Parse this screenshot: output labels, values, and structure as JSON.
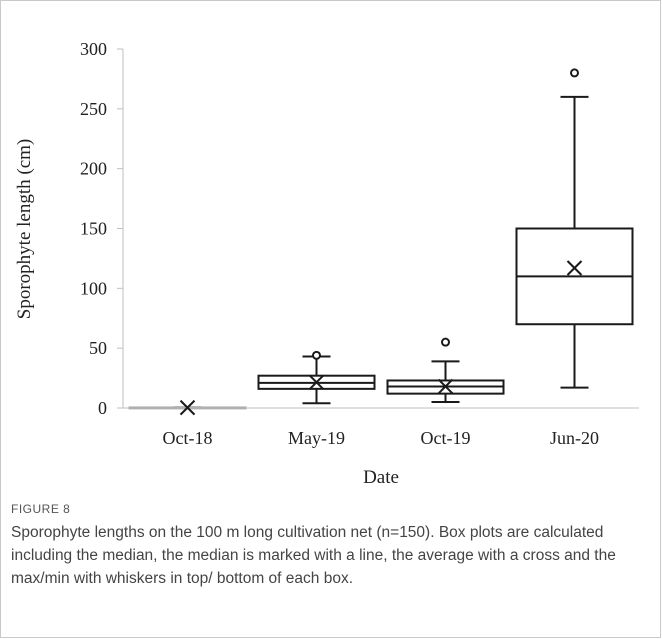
{
  "figure": {
    "label": "FIGURE 8",
    "caption": "Sporophyte lengths on the 100 m long cultivation net (n=150). Box plots are calculated including the median, the median is marked with a line, the average with a cross and the max/min with whiskers in top/ bottom of each box."
  },
  "chart_data": {
    "type": "box",
    "title": "",
    "xlabel": "Date",
    "ylabel": "Sporophyte length (cm)",
    "ylim": [
      0,
      300
    ],
    "yticks": [
      0,
      50,
      100,
      150,
      200,
      250,
      300
    ],
    "grid": false,
    "categories": [
      "Oct-18",
      "May-19",
      "Oct-19",
      "Jun-20"
    ],
    "boxes": [
      {
        "category": "Oct-18",
        "min": 0,
        "q1": 0,
        "median": 0,
        "q3": 0.5,
        "max": 0.5,
        "mean": 0.3,
        "outliers": []
      },
      {
        "category": "May-19",
        "min": 4,
        "q1": 16,
        "median": 21,
        "q3": 27,
        "max": 43,
        "mean": 21.5,
        "outliers": [
          44
        ]
      },
      {
        "category": "Oct-19",
        "min": 5,
        "q1": 12,
        "median": 18,
        "q3": 23,
        "max": 39,
        "mean": 18,
        "outliers": [
          55
        ]
      },
      {
        "category": "Jun-20",
        "min": 17,
        "q1": 70,
        "median": 110,
        "q3": 150,
        "max": 260,
        "mean": 117,
        "outliers": [
          280
        ]
      }
    ]
  }
}
